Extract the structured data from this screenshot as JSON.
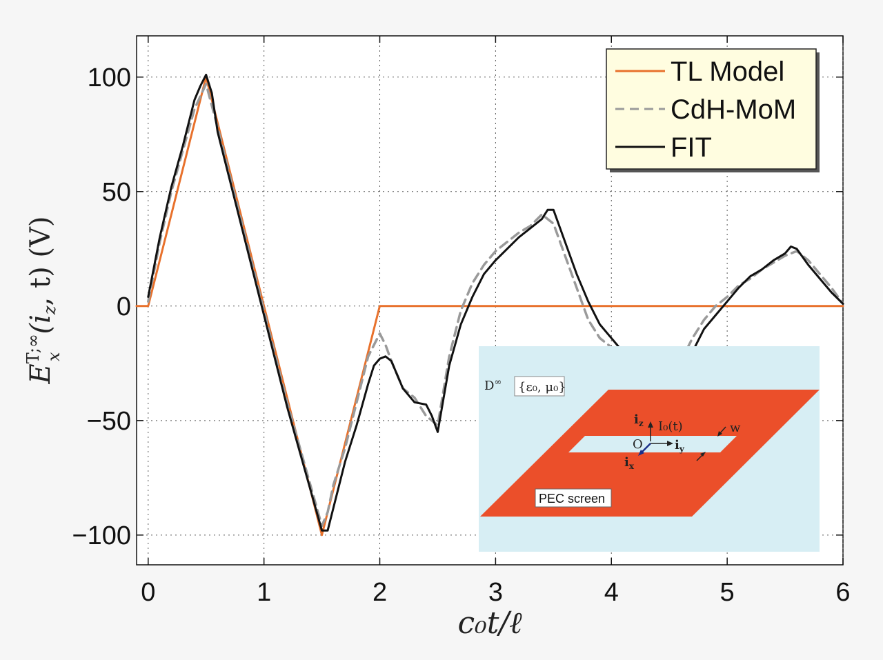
{
  "chart_data": {
    "type": "line",
    "xlabel": "c₀t/ℓ",
    "ylabel": "E_x^{T;∞}(i_z, t)   (V)",
    "ylabel_main": "E",
    "ylabel_sub": "x",
    "ylabel_sup": "T;∞",
    "ylabel_rest": "(i",
    "ylabel_rest_sub": "z",
    "ylabel_tail": ", t)   (V)",
    "xlim": [
      -0.1,
      6
    ],
    "ylim": [
      -113,
      118
    ],
    "xticks": [
      0,
      1,
      2,
      3,
      4,
      5,
      6
    ],
    "yticks": [
      100,
      50,
      0,
      -50,
      -100
    ],
    "ytick_labels": [
      "100",
      "50",
      "0",
      "−50",
      "−100"
    ],
    "grid": true,
    "legend_position": "top-right",
    "series": [
      {
        "name": "TL Model",
        "color": "#e8712c",
        "style": "solid",
        "x": [
          -0.1,
          0,
          0.5,
          1.5,
          2,
          6
        ],
        "y": [
          0,
          0,
          100,
          -100,
          0,
          0
        ]
      },
      {
        "name": "CdH-MoM",
        "color": "#9a9a9a",
        "style": "dashed",
        "x": [
          0,
          0.1,
          0.2,
          0.3,
          0.4,
          0.5,
          0.6,
          0.7,
          0.8,
          0.9,
          1.0,
          1.1,
          1.2,
          1.3,
          1.4,
          1.5,
          1.55,
          1.6,
          1.7,
          1.8,
          1.9,
          2.0,
          2.05,
          2.1,
          2.2,
          2.3,
          2.4,
          2.5,
          2.6,
          2.7,
          2.8,
          2.9,
          3.0,
          3.1,
          3.2,
          3.3,
          3.4,
          3.5,
          3.6,
          3.7,
          3.8,
          3.9,
          4.0,
          4.1,
          4.2,
          4.3,
          4.4,
          4.5,
          4.6,
          4.7,
          4.8,
          4.9,
          5.0,
          5.1,
          5.2,
          5.3,
          5.4,
          5.5,
          5.6,
          5.7,
          5.8,
          5.9,
          6.0
        ],
        "y": [
          2,
          28,
          50,
          68,
          86,
          97,
          78,
          58,
          38,
          18,
          -2,
          -22,
          -42,
          -60,
          -78,
          -96,
          -90,
          -78,
          -62,
          -42,
          -22,
          -12,
          -17,
          -24,
          -36,
          -40,
          -48,
          -52,
          -22,
          -2,
          10,
          18,
          24,
          28,
          32,
          35,
          40,
          36,
          22,
          8,
          -6,
          -14,
          -18,
          -22,
          -28,
          -32,
          -36,
          -30,
          -24,
          -14,
          -6,
          0,
          4,
          9,
          12,
          16,
          19,
          22,
          24,
          20,
          14,
          8,
          1
        ]
      },
      {
        "name": "FIT",
        "color": "#111111",
        "style": "solid",
        "x": [
          0,
          0.1,
          0.2,
          0.3,
          0.4,
          0.45,
          0.5,
          0.55,
          0.6,
          0.7,
          0.8,
          0.9,
          1.0,
          1.1,
          1.2,
          1.3,
          1.4,
          1.5,
          1.55,
          1.6,
          1.7,
          1.8,
          1.9,
          1.95,
          2.0,
          2.05,
          2.1,
          2.2,
          2.3,
          2.4,
          2.45,
          2.5,
          2.6,
          2.7,
          2.8,
          2.9,
          3.0,
          3.1,
          3.2,
          3.3,
          3.4,
          3.45,
          3.5,
          3.6,
          3.7,
          3.8,
          3.9,
          4.0,
          4.1,
          4.2,
          4.3,
          4.4,
          4.5,
          4.6,
          4.7,
          4.8,
          4.9,
          5.0,
          5.1,
          5.2,
          5.3,
          5.4,
          5.5,
          5.55,
          5.6,
          5.7,
          5.8,
          5.9,
          6.0
        ],
        "y": [
          4,
          30,
          52,
          70,
          90,
          96,
          101,
          93,
          76,
          56,
          36,
          16,
          -4,
          -24,
          -44,
          -62,
          -80,
          -98,
          -98,
          -88,
          -68,
          -52,
          -34,
          -26,
          -23,
          -22,
          -24,
          -36,
          -42,
          -43,
          -48,
          -55,
          -26,
          -8,
          4,
          14,
          20,
          25,
          30,
          34,
          38,
          42,
          42,
          28,
          14,
          2,
          -8,
          -14,
          -20,
          -26,
          -30,
          -34,
          -32,
          -26,
          -20,
          -10,
          -4,
          2,
          8,
          13,
          16,
          20,
          23,
          26,
          25,
          18,
          12,
          6,
          1
        ]
      }
    ],
    "inset": {
      "domain_label": "D^∞",
      "domain_main": "D",
      "domain_sup": "∞",
      "medium_label": "{ε₀, μ₀}",
      "current_label": "I₀(t)",
      "width_label": "w",
      "origin_label": "O",
      "iz_label": "i",
      "iz_sub": "z",
      "iy_label": "i",
      "iy_sub": "y",
      "ix_label": "i",
      "ix_sub": "x",
      "screen_label": "PEC screen",
      "background_color": "#d7eef4",
      "screen_color": "#eb4f2a"
    }
  }
}
